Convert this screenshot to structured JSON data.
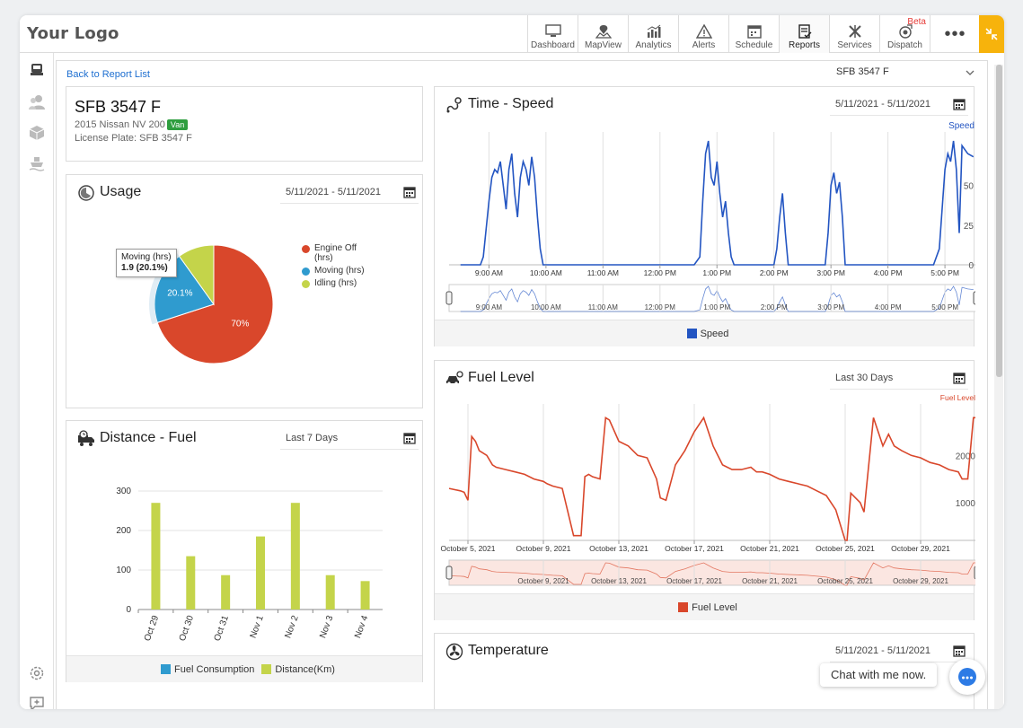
{
  "brand": {
    "logo_text": "Your Logo"
  },
  "nav": {
    "items": [
      {
        "label": "Dashboard",
        "icon": "monitor-icon"
      },
      {
        "label": "MapView",
        "icon": "map-pin-icon"
      },
      {
        "label": "Analytics",
        "icon": "bar-chart-icon"
      },
      {
        "label": "Alerts",
        "icon": "warning-icon"
      },
      {
        "label": "Schedule",
        "icon": "calendar-icon"
      },
      {
        "label": "Reports",
        "icon": "report-icon",
        "active": true
      },
      {
        "label": "Services",
        "icon": "tools-icon"
      },
      {
        "label": "Dispatch",
        "icon": "dispatch-icon",
        "badge": "Beta"
      }
    ],
    "more_label": "•••"
  },
  "page": {
    "back_link": "Back to Report List",
    "vehicle_select": "SFB 3547 F"
  },
  "vehicle": {
    "name": "SFB 3547 F",
    "model": "2015 Nissan NV 200",
    "type_badge": "Van",
    "plate": "License Plate: SFB 3547 F"
  },
  "usage": {
    "title": "Usage",
    "date_range": "5/11/2021 - 5/11/2021",
    "tooltip_label": "Moving (hrs)",
    "tooltip_value": "1.9 (20.1%)"
  },
  "distance_fuel": {
    "title": "Distance - Fuel",
    "date_range": "Last 7 Days"
  },
  "time_speed": {
    "title": "Time - Speed",
    "date_range": "5/11/2021 - 5/11/2021"
  },
  "fuel_level": {
    "title": "Fuel Level",
    "date_range": "Last 30 Days"
  },
  "temperature": {
    "title": "Temperature",
    "date_range": "5/11/2021 - 5/11/2021"
  },
  "chat": {
    "text": "Chat with me now."
  },
  "colors": {
    "engine_off": "#d9472b",
    "moving": "#2f9bcf",
    "idling": "#c4d44a",
    "speed_line": "#2355c2",
    "fuel_line": "#d9472b",
    "accent": "#f7b30c"
  },
  "chart_data": [
    {
      "type": "pie",
      "labels": [
        "Engine Off (hrs)",
        "Moving (hrs)",
        "Idling (hrs)"
      ],
      "values": [
        70,
        20.1,
        9.9
      ],
      "data_labels": [
        "70%",
        "20.1%",
        ""
      ],
      "colors": [
        "#d9472b",
        "#2f9bcf",
        "#c4d44a"
      ],
      "legend": "right"
    },
    {
      "type": "bar",
      "categories": [
        "Oct 29",
        "Oct 30",
        "Oct 31",
        "Nov 1",
        "Nov 2",
        "Nov 3",
        "Nov 4"
      ],
      "series": [
        {
          "name": "Fuel Consumption",
          "values": [
            0,
            0,
            0,
            0,
            0,
            0,
            0
          ],
          "color": "#2f9bcf"
        },
        {
          "name": "Distance(Km)",
          "values": [
            270,
            135,
            87,
            185,
            270,
            87,
            72
          ],
          "color": "#c4d44a"
        }
      ],
      "yticks": [
        0,
        100,
        200,
        300
      ],
      "ylim": [
        0,
        300
      ],
      "legend": "bottom"
    },
    {
      "type": "line",
      "series": [
        {
          "name": "Speed",
          "color": "#2355c2"
        }
      ],
      "x_ticks": [
        "9:00 AM",
        "10:00 AM",
        "11:00 AM",
        "12:00 PM",
        "1:00 PM",
        "2:00 PM",
        "3:00 PM",
        "4:00 PM",
        "5:00 PM"
      ],
      "navigator_ticks": [
        "9:00 AM",
        "10:00 AM",
        "11:00 AM",
        "12:00 PM",
        "1:00 PM",
        "2:00 PM",
        "3:00 PM",
        "4:00 PM",
        "5:00 PM"
      ],
      "yticks": [
        "0",
        "25",
        "50"
      ],
      "y_axis_title": "Speed",
      "x": [
        8.5,
        8.6,
        8.7,
        8.8,
        8.85,
        8.9,
        9.0,
        9.05,
        9.1,
        9.15,
        9.2,
        9.25,
        9.3,
        9.35,
        9.4,
        9.45,
        9.5,
        9.55,
        9.6,
        9.65,
        9.7,
        9.75,
        9.8,
        9.85,
        9.9,
        9.95,
        10.0,
        10.5,
        11.0,
        11.5,
        12.0,
        12.5,
        12.6,
        12.7,
        12.75,
        12.8,
        12.85,
        12.9,
        12.95,
        13.0,
        13.05,
        13.1,
        13.15,
        13.2,
        13.25,
        13.3,
        13.35,
        13.5,
        14.0,
        14.05,
        14.1,
        14.15,
        14.2,
        14.25,
        14.5,
        14.9,
        14.95,
        15.0,
        15.05,
        15.1,
        15.15,
        15.2,
        15.25,
        15.5,
        16.0,
        16.5,
        16.8,
        16.9,
        17.0,
        17.05,
        17.1,
        17.15,
        17.2,
        17.25,
        17.3,
        17.4,
        17.5
      ],
      "y": [
        0,
        0,
        0,
        0,
        0,
        5,
        40,
        55,
        60,
        58,
        65,
        50,
        35,
        60,
        70,
        45,
        30,
        55,
        65,
        60,
        50,
        68,
        55,
        30,
        10,
        0,
        0,
        0,
        0,
        0,
        0,
        0,
        0,
        5,
        40,
        70,
        78,
        55,
        50,
        65,
        45,
        30,
        40,
        20,
        5,
        0,
        0,
        0,
        0,
        10,
        30,
        45,
        20,
        0,
        0,
        0,
        20,
        50,
        58,
        45,
        52,
        30,
        0,
        0,
        0,
        0,
        0,
        10,
        60,
        70,
        65,
        78,
        60,
        20,
        75,
        70,
        68
      ]
    },
    {
      "type": "line",
      "series": [
        {
          "name": "Fuel Level",
          "color": "#d9472b"
        }
      ],
      "x_ticks": [
        "October 5, 2021",
        "October 9, 2021",
        "October 13, 2021",
        "October 17, 2021",
        "October 21, 2021",
        "October 25, 2021",
        "October 29, 2021"
      ],
      "navigator_ticks": [
        "October 9, 2021",
        "October 13, 2021",
        "October 17, 2021",
        "October 21, 2021",
        "October 25, 2021",
        "October 29, 2021"
      ],
      "yticks": [
        "1000",
        "2000"
      ],
      "y_axis_title": "Fuel Level",
      "x": [
        4.0,
        4.6,
        4.8,
        5.0,
        5.2,
        5.4,
        5.6,
        6.0,
        6.3,
        6.5,
        7.0,
        7.5,
        8.0,
        8.5,
        9.0,
        9.2,
        9.5,
        10.0,
        10.6,
        11.0,
        11.2,
        11.4,
        11.6,
        12.0,
        12.3,
        12.5,
        13.0,
        13.5,
        14.0,
        14.5,
        15.0,
        15.2,
        15.5,
        16.0,
        16.5,
        17.0,
        17.5,
        18.0,
        18.5,
        19.0,
        19.5,
        20.0,
        20.3,
        20.6,
        21.0,
        21.5,
        22.0,
        22.5,
        23.0,
        23.5,
        24.0,
        24.5,
        25.0,
        25.1,
        25.3,
        25.8,
        26.0,
        26.5,
        27.0,
        27.3,
        27.6,
        28.0,
        28.5,
        29.0,
        29.5,
        30.0,
        30.5,
        31.0,
        31.2,
        31.5,
        31.8,
        32.0
      ],
      "y": [
        1300,
        1250,
        1220,
        1050,
        2400,
        2300,
        2100,
        2000,
        1800,
        1750,
        1700,
        1650,
        1600,
        1500,
        1450,
        1400,
        1350,
        1300,
        300,
        300,
        1550,
        1600,
        1550,
        1500,
        2800,
        2750,
        2300,
        2200,
        2000,
        1950,
        1500,
        1100,
        1050,
        1800,
        2100,
        2500,
        2800,
        2200,
        1800,
        1700,
        1700,
        1750,
        1650,
        1650,
        1600,
        1500,
        1450,
        1400,
        1350,
        1250,
        1150,
        850,
        200,
        200,
        1200,
        1000,
        800,
        2800,
        2200,
        2450,
        2200,
        2100,
        2000,
        1950,
        1850,
        1800,
        1700,
        1650,
        1500,
        1500,
        2800,
        2800
      ]
    }
  ]
}
